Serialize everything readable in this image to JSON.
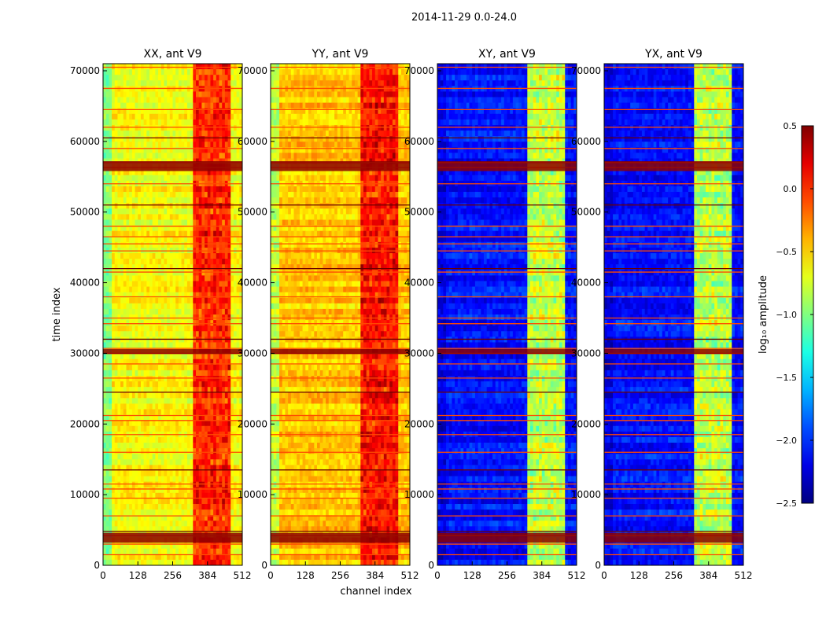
{
  "chart_data": {
    "type": "heatmap",
    "title": "2014-11-29 0.0-24.0",
    "xlabel": "channel index",
    "ylabel": "time index",
    "xlim": [
      0,
      512
    ],
    "ylim": [
      0,
      71000
    ],
    "xticks": [
      0,
      128,
      256,
      384,
      512
    ],
    "yticks": [
      0,
      10000,
      20000,
      30000,
      40000,
      50000,
      60000,
      70000
    ],
    "panels": [
      {
        "name": "xx",
        "title": "XX, ant V9",
        "base": 0.62,
        "band": 0.22
      },
      {
        "name": "yy",
        "title": "YY, ant V9",
        "base": 0.68,
        "band": 0.18
      },
      {
        "name": "xy",
        "title": "XY, ant V9",
        "base": 0.14,
        "band": 0.42
      },
      {
        "name": "yx",
        "title": "YX, ant V9",
        "base": 0.14,
        "band": 0.42
      }
    ],
    "rfi_band_channels": [
      330,
      470
    ],
    "colorbar": {
      "label": "log₁₀ amplitude",
      "min": -2.5,
      "max": 0.5,
      "ticks": [
        0.5,
        0.0,
        -0.5,
        -1.0,
        -1.5,
        -2.0,
        -2.5
      ],
      "tick_labels": [
        "0.5",
        "0.0",
        "−0.5",
        "−1.0",
        "−1.5",
        "−2.0",
        "−2.5"
      ],
      "colormap": "jet"
    },
    "horizontal_flag_lines": [
      1500,
      3000,
      4200,
      4800,
      7000,
      9500,
      10800,
      11500,
      13500,
      16000,
      18500,
      20500,
      21200,
      24500,
      26500,
      28500,
      30000,
      30700,
      32000,
      34200,
      35000,
      38000,
      41500,
      42000,
      44500,
      45500,
      46500,
      48000,
      51000,
      54000,
      56300,
      57000,
      59000,
      60500,
      62000,
      64500,
      67500,
      70500
    ],
    "strong_bands": [
      [
        3200,
        4600
      ],
      [
        29900,
        30600
      ],
      [
        55800,
        57200
      ]
    ]
  }
}
